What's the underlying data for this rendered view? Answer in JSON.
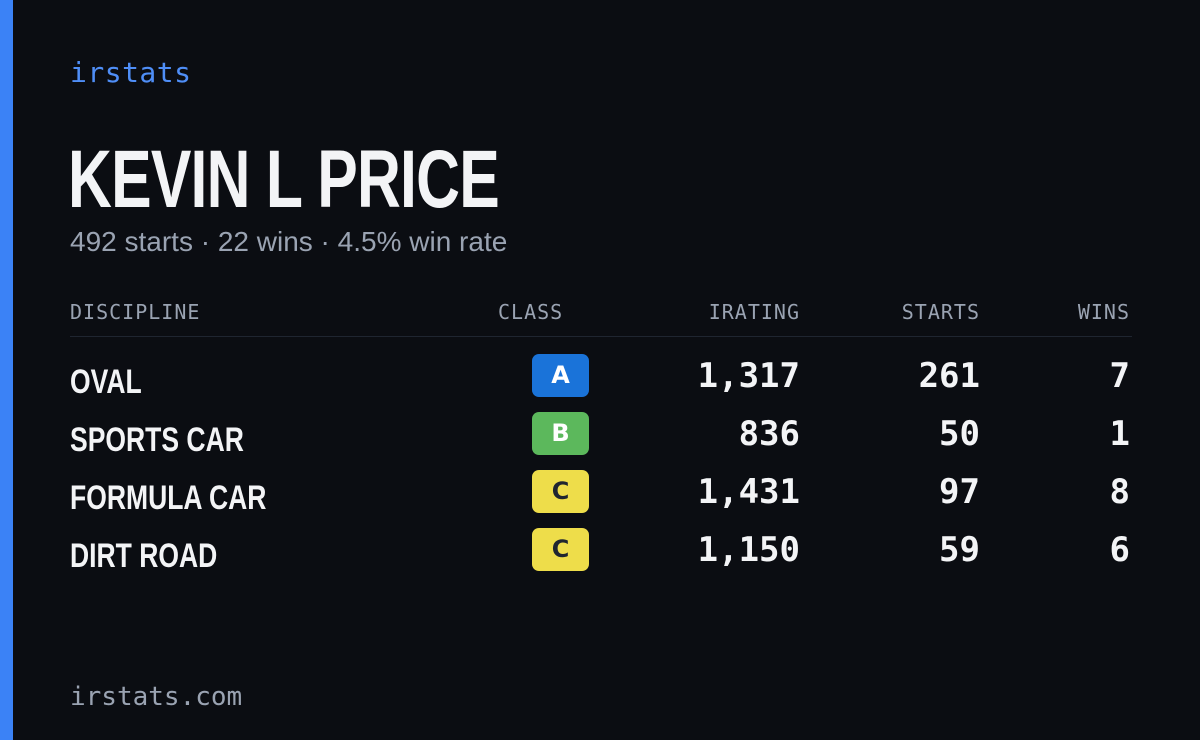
{
  "brand": "irstats",
  "driver": {
    "name": "KEVIN L PRICE",
    "summary": "492 starts · 22 wins · 4.5% win rate"
  },
  "table": {
    "headers": {
      "discipline": "DISCIPLINE",
      "class": "CLASS",
      "irating": "IRATING",
      "starts": "STARTS",
      "wins": "WINS"
    },
    "rows": [
      {
        "discipline": "OVAL",
        "class": "A",
        "class_color": "#1a73d9",
        "class_text_color": "#ffffff",
        "irating": "1,317",
        "starts": "261",
        "wins": "7"
      },
      {
        "discipline": "SPORTS CAR",
        "class": "B",
        "class_color": "#5cb85c",
        "class_text_color": "#ffffff",
        "irating": "836",
        "starts": "50",
        "wins": "1"
      },
      {
        "discipline": "FORMULA CAR",
        "class": "C",
        "class_color": "#eedd4a",
        "class_text_color": "#1f2530",
        "irating": "1,431",
        "starts": "97",
        "wins": "8"
      },
      {
        "discipline": "DIRT ROAD",
        "class": "C",
        "class_color": "#eedd4a",
        "class_text_color": "#1f2530",
        "irating": "1,150",
        "starts": "59",
        "wins": "6"
      }
    ]
  },
  "footer": "irstats.com",
  "colors": {
    "background": "#0b0d12",
    "accent": "#3b82f6",
    "brand": "#4f8ef7",
    "muted": "#9aa3b2",
    "text": "#f3f4f6"
  }
}
